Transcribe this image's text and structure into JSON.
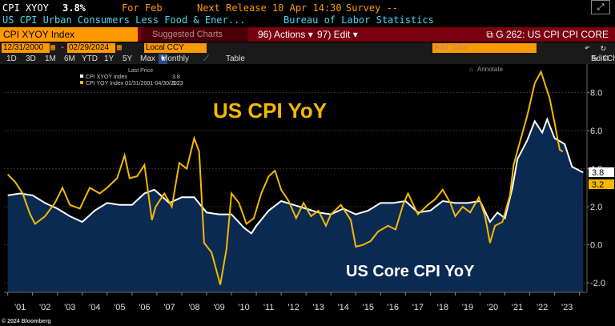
{
  "header": {
    "ticker": "CPI XYOY",
    "value": "3.8%",
    "period": "For Feb",
    "next_release": "Next Release 10 Apr 14:30",
    "survey": "Survey --",
    "description": "US CPI Urban Consumers Less Food & Ener...",
    "source": "Bureau of Labor Statistics"
  },
  "toolbar": {
    "security": "CPI XYOY Index",
    "suggested": "Suggested Charts",
    "actions": "96) Actions",
    "edit": "97) Edit",
    "chart_id": "G 262: US CPI CPI CORE",
    "start_date": "12/31/2000",
    "end_date": "02/29/2024",
    "currency": "Local CCY",
    "add_data": "Add Data",
    "edit_chart": "Edit Chart",
    "periods": [
      "1D",
      "3D",
      "1M",
      "6M",
      "YTD",
      "1Y",
      "5Y",
      "Max"
    ],
    "frequency": "Monthly",
    "table": "Table"
  },
  "legend": {
    "header": "Last Price",
    "annotate": "Annotate",
    "items": [
      {
        "label": "CPI XYOY Index",
        "value": "3.8"
      },
      {
        "label": "CPI YOY Index 01/31/2001-04/30/2023",
        "value": "3.2"
      }
    ]
  },
  "annotations": {
    "headline": "US CPI YoY",
    "subline": "US Core CPI YoY"
  },
  "footer": {
    "copyright": "© 2024 Bloomberg"
  },
  "colors": {
    "core": "#ffffff",
    "core_fill": "#0b2a52",
    "headline": "#f5b800",
    "accent": "#ff9900"
  },
  "chart_data": {
    "type": "line",
    "x_tick_labels": [
      "'01",
      "'02",
      "'03",
      "'04",
      "'05",
      "'06",
      "'07",
      "'08",
      "'09",
      "'10",
      "'11",
      "'12",
      "'13",
      "'14",
      "'15",
      "'16",
      "'17",
      "'18",
      "'19",
      "'20",
      "'21",
      "'22",
      "'23"
    ],
    "y_ticks": [
      -2.0,
      0.0,
      2.0,
      4.0,
      6.0,
      8.0
    ],
    "ylim": [
      -2.5,
      9.5
    ],
    "grid": true,
    "legend_position": "top-left",
    "series": [
      {
        "name": "CPI XYOY Index",
        "style": "area",
        "points": [
          [
            2001.0,
            2.6
          ],
          [
            2001.5,
            2.7
          ],
          [
            2002.0,
            2.6
          ],
          [
            2002.5,
            2.2
          ],
          [
            2003.0,
            1.9
          ],
          [
            2003.5,
            1.5
          ],
          [
            2004.0,
            1.2
          ],
          [
            2004.5,
            1.8
          ],
          [
            2005.0,
            2.2
          ],
          [
            2005.5,
            2.1
          ],
          [
            2006.0,
            2.1
          ],
          [
            2006.5,
            2.7
          ],
          [
            2006.9,
            2.9
          ],
          [
            2007.5,
            2.2
          ],
          [
            2008.0,
            2.5
          ],
          [
            2008.5,
            2.5
          ],
          [
            2009.0,
            1.7
          ],
          [
            2009.5,
            1.6
          ],
          [
            2010.0,
            1.6
          ],
          [
            2010.5,
            0.9
          ],
          [
            2010.8,
            0.6
          ],
          [
            2011.0,
            1.0
          ],
          [
            2011.5,
            1.8
          ],
          [
            2012.0,
            2.3
          ],
          [
            2012.5,
            2.1
          ],
          [
            2013.0,
            1.9
          ],
          [
            2013.5,
            1.7
          ],
          [
            2014.0,
            1.6
          ],
          [
            2014.5,
            1.9
          ],
          [
            2015.0,
            1.6
          ],
          [
            2015.5,
            1.8
          ],
          [
            2016.0,
            2.2
          ],
          [
            2016.5,
            2.2
          ],
          [
            2017.0,
            2.3
          ],
          [
            2017.5,
            1.7
          ],
          [
            2018.0,
            1.8
          ],
          [
            2018.5,
            2.3
          ],
          [
            2019.0,
            2.2
          ],
          [
            2019.5,
            2.2
          ],
          [
            2020.0,
            2.3
          ],
          [
            2020.4,
            1.2
          ],
          [
            2020.7,
            1.7
          ],
          [
            2021.0,
            1.4
          ],
          [
            2021.3,
            3.0
          ],
          [
            2021.5,
            4.5
          ],
          [
            2021.9,
            5.5
          ],
          [
            2022.2,
            6.5
          ],
          [
            2022.5,
            5.9
          ],
          [
            2022.7,
            6.6
          ],
          [
            2023.0,
            5.6
          ],
          [
            2023.4,
            5.3
          ],
          [
            2023.7,
            4.1
          ],
          [
            2024.0,
            3.9
          ],
          [
            2024.15,
            3.8
          ]
        ]
      },
      {
        "name": "CPI YOY Index 01/31/2001-04/30/2023",
        "style": "line",
        "points": [
          [
            2001.0,
            3.7
          ],
          [
            2001.3,
            3.3
          ],
          [
            2001.6,
            2.7
          ],
          [
            2001.9,
            1.6
          ],
          [
            2002.1,
            1.1
          ],
          [
            2002.5,
            1.5
          ],
          [
            2002.9,
            2.2
          ],
          [
            2003.2,
            3.0
          ],
          [
            2003.5,
            2.1
          ],
          [
            2003.9,
            1.9
          ],
          [
            2004.3,
            3.0
          ],
          [
            2004.7,
            2.7
          ],
          [
            2005.0,
            3.0
          ],
          [
            2005.4,
            3.5
          ],
          [
            2005.7,
            4.7
          ],
          [
            2005.9,
            3.5
          ],
          [
            2006.2,
            3.6
          ],
          [
            2006.5,
            4.2
          ],
          [
            2006.8,
            1.3
          ],
          [
            2006.95,
            2.0
          ],
          [
            2007.3,
            2.7
          ],
          [
            2007.6,
            2.0
          ],
          [
            2007.9,
            4.3
          ],
          [
            2008.2,
            4.0
          ],
          [
            2008.5,
            5.6
          ],
          [
            2008.7,
            4.9
          ],
          [
            2008.9,
            0.1
          ],
          [
            2009.2,
            -0.4
          ],
          [
            2009.55,
            -2.1
          ],
          [
            2009.8,
            -0.2
          ],
          [
            2010.0,
            2.7
          ],
          [
            2010.3,
            2.2
          ],
          [
            2010.6,
            1.1
          ],
          [
            2010.9,
            1.4
          ],
          [
            2011.2,
            2.7
          ],
          [
            2011.5,
            3.6
          ],
          [
            2011.75,
            3.9
          ],
          [
            2012.0,
            2.9
          ],
          [
            2012.3,
            2.3
          ],
          [
            2012.6,
            1.4
          ],
          [
            2012.9,
            2.2
          ],
          [
            2013.2,
            1.5
          ],
          [
            2013.5,
            1.8
          ],
          [
            2013.8,
            1.0
          ],
          [
            2014.0,
            1.6
          ],
          [
            2014.4,
            2.1
          ],
          [
            2014.8,
            1.3
          ],
          [
            2015.0,
            -0.1
          ],
          [
            2015.3,
            0.0
          ],
          [
            2015.6,
            0.2
          ],
          [
            2015.9,
            0.7
          ],
          [
            2016.3,
            1.0
          ],
          [
            2016.6,
            0.8
          ],
          [
            2016.9,
            2.1
          ],
          [
            2017.1,
            2.7
          ],
          [
            2017.5,
            1.6
          ],
          [
            2017.9,
            2.1
          ],
          [
            2018.2,
            2.4
          ],
          [
            2018.5,
            2.9
          ],
          [
            2018.8,
            2.2
          ],
          [
            2019.0,
            1.5
          ],
          [
            2019.3,
            2.0
          ],
          [
            2019.6,
            1.7
          ],
          [
            2019.95,
            2.5
          ],
          [
            2020.2,
            1.5
          ],
          [
            2020.4,
            0.1
          ],
          [
            2020.6,
            1.0
          ],
          [
            2020.9,
            1.2
          ],
          [
            2021.2,
            2.6
          ],
          [
            2021.35,
            4.2
          ],
          [
            2021.6,
            5.4
          ],
          [
            2021.9,
            6.8
          ],
          [
            2022.2,
            8.5
          ],
          [
            2022.45,
            9.1
          ],
          [
            2022.6,
            8.5
          ],
          [
            2022.8,
            7.7
          ],
          [
            2023.0,
            6.4
          ],
          [
            2023.2,
            5.0
          ],
          [
            2023.33,
            4.9
          ]
        ]
      }
    ],
    "last_values": {
      "core": 3.8,
      "headline": 3.2
    }
  }
}
